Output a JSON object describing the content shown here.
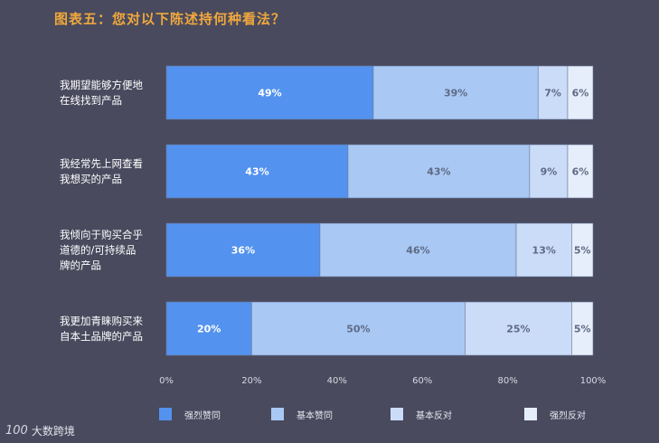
{
  "colors": {
    "background": "#494a5e",
    "title": "#f1a83c",
    "series": [
      "#5392ee",
      "#a9c8f4",
      "#cbdcf8",
      "#e6eefb"
    ],
    "label_on_dark": "#ffffff",
    "label_on_light": "#5f6b85",
    "axis_text": "#d8d8e2",
    "category_text": "#ffffff"
  },
  "chart_data": {
    "type": "bar",
    "orientation": "horizontal-stacked-100",
    "title": "图表五：您对以下陈述持何种看法？",
    "categories": [
      [
        "我期望能够方便地",
        "在线找到产品"
      ],
      [
        "我经常先上网查看",
        "我想买的产品"
      ],
      [
        "我倾向于购买合乎",
        "道德的/可持续品",
        "牌的产品"
      ],
      [
        "我更加青睐购买来",
        "自本土品牌的产品"
      ]
    ],
    "series": [
      {
        "name": "强烈赞同",
        "values": [
          49,
          43,
          36,
          20
        ]
      },
      {
        "name": "基本赞同",
        "values": [
          39,
          43,
          46,
          50
        ]
      },
      {
        "name": "基本反对",
        "values": [
          7,
          9,
          13,
          25
        ]
      },
      {
        "name": "强烈反对",
        "values": [
          6,
          6,
          5,
          5
        ]
      }
    ],
    "data_labels": [
      [
        "49%",
        "43%",
        "36%",
        "20%"
      ],
      [
        "39%",
        "43%",
        "46%",
        "50%"
      ],
      [
        "7%",
        "9%",
        "13%",
        "25%"
      ],
      [
        "6%",
        "6%",
        "5%",
        "5%"
      ]
    ],
    "xlim": [
      0,
      100
    ],
    "xticks": [
      "0%",
      "20%",
      "40%",
      "60%",
      "80%",
      "100%"
    ],
    "legend_position": "bottom",
    "grid": false
  },
  "brand": {
    "logo": "100",
    "name": "大数跨境"
  }
}
